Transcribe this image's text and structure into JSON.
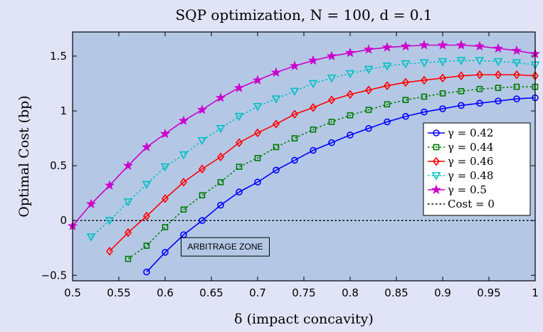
{
  "chart_data": {
    "type": "line",
    "title": "SQP optimization, N = 100, d = 0.1",
    "xlabel": "δ (impact concavity)",
    "ylabel": "Optimal Cost (bp)",
    "xlim": [
      0.5,
      1.0
    ],
    "ylim": [
      -0.55,
      1.72
    ],
    "xticks": [
      0.5,
      0.55,
      0.6,
      0.65,
      0.7,
      0.75,
      0.8,
      0.85,
      0.9,
      0.95,
      1.0
    ],
    "xtick_labels": [
      "0.5",
      "0.55",
      "0.6",
      "0.65",
      "0.7",
      "0.75",
      "0.8",
      "0.85",
      "0.9",
      "0.95",
      "1"
    ],
    "yticks": [
      -0.5,
      0,
      0.5,
      1,
      1.5
    ],
    "ytick_labels": [
      "−0.5",
      "0",
      "0.5",
      "1",
      "1.5"
    ],
    "grid": false,
    "legend_position": "right",
    "plot_background": "#b4c8e6",
    "series": [
      {
        "name": "γ = 0.42",
        "color": "#0000ff",
        "marker": "circle",
        "line_style": "solid",
        "x": [
          0.58,
          0.6,
          0.62,
          0.64,
          0.66,
          0.68,
          0.7,
          0.72,
          0.74,
          0.76,
          0.78,
          0.8,
          0.82,
          0.84,
          0.86,
          0.88,
          0.9,
          0.92,
          0.94,
          0.96,
          0.98,
          1.0
        ],
        "y": [
          -0.47,
          -0.29,
          -0.13,
          0.0,
          0.14,
          0.26,
          0.35,
          0.46,
          0.55,
          0.64,
          0.71,
          0.78,
          0.84,
          0.9,
          0.95,
          0.99,
          1.02,
          1.05,
          1.07,
          1.09,
          1.11,
          1.12
        ]
      },
      {
        "name": "γ = 0.44",
        "color": "#007a00",
        "marker": "square",
        "line_style": "dotted",
        "x": [
          0.56,
          0.58,
          0.6,
          0.62,
          0.64,
          0.66,
          0.68,
          0.7,
          0.72,
          0.74,
          0.76,
          0.78,
          0.8,
          0.82,
          0.84,
          0.86,
          0.88,
          0.9,
          0.92,
          0.94,
          0.96,
          0.98,
          1.0
        ],
        "y": [
          -0.35,
          -0.23,
          -0.06,
          0.1,
          0.23,
          0.35,
          0.49,
          0.57,
          0.67,
          0.75,
          0.83,
          0.9,
          0.96,
          1.01,
          1.06,
          1.1,
          1.13,
          1.16,
          1.18,
          1.2,
          1.21,
          1.22,
          1.22
        ]
      },
      {
        "name": "γ = 0.46",
        "color": "#ff0000",
        "marker": "diamond",
        "line_style": "solid",
        "x": [
          0.54,
          0.56,
          0.58,
          0.6,
          0.62,
          0.64,
          0.66,
          0.68,
          0.7,
          0.72,
          0.74,
          0.76,
          0.78,
          0.8,
          0.82,
          0.84,
          0.86,
          0.88,
          0.9,
          0.92,
          0.94,
          0.96,
          0.98,
          1.0
        ],
        "y": [
          -0.28,
          -0.11,
          0.04,
          0.2,
          0.35,
          0.47,
          0.58,
          0.71,
          0.8,
          0.88,
          0.97,
          1.03,
          1.1,
          1.15,
          1.19,
          1.23,
          1.26,
          1.28,
          1.3,
          1.32,
          1.33,
          1.33,
          1.33,
          1.32
        ]
      },
      {
        "name": "γ = 0.48",
        "color": "#00c0c0",
        "marker": "triangle-down",
        "line_style": "dotted",
        "x": [
          0.52,
          0.54,
          0.56,
          0.58,
          0.6,
          0.62,
          0.64,
          0.66,
          0.68,
          0.7,
          0.72,
          0.74,
          0.76,
          0.78,
          0.8,
          0.82,
          0.84,
          0.86,
          0.88,
          0.9,
          0.92,
          0.94,
          0.96,
          0.98,
          1.0
        ],
        "y": [
          -0.15,
          0.0,
          0.17,
          0.33,
          0.49,
          0.6,
          0.73,
          0.84,
          0.95,
          1.04,
          1.11,
          1.18,
          1.25,
          1.3,
          1.34,
          1.38,
          1.41,
          1.43,
          1.44,
          1.45,
          1.46,
          1.46,
          1.45,
          1.44,
          1.42
        ]
      },
      {
        "name": "γ = 0.5",
        "color": "#cc00cc",
        "marker": "star",
        "line_style": "solid",
        "x": [
          0.5,
          0.52,
          0.54,
          0.56,
          0.58,
          0.6,
          0.62,
          0.64,
          0.66,
          0.68,
          0.7,
          0.72,
          0.74,
          0.76,
          0.78,
          0.8,
          0.82,
          0.84,
          0.86,
          0.88,
          0.9,
          0.92,
          0.94,
          0.96,
          0.98,
          1.0
        ],
        "y": [
          -0.05,
          0.15,
          0.32,
          0.5,
          0.67,
          0.79,
          0.91,
          1.01,
          1.12,
          1.21,
          1.28,
          1.35,
          1.41,
          1.46,
          1.5,
          1.53,
          1.56,
          1.58,
          1.59,
          1.6,
          1.6,
          1.6,
          1.59,
          1.57,
          1.55,
          1.52
        ]
      }
    ],
    "reference_line": {
      "name": "Cost = 0",
      "y": 0,
      "color": "#000000",
      "line_style": "dotted"
    },
    "annotations": [
      {
        "text": "ARBITRAGE ZONE",
        "x": 0.665,
        "y": -0.24
      }
    ]
  }
}
